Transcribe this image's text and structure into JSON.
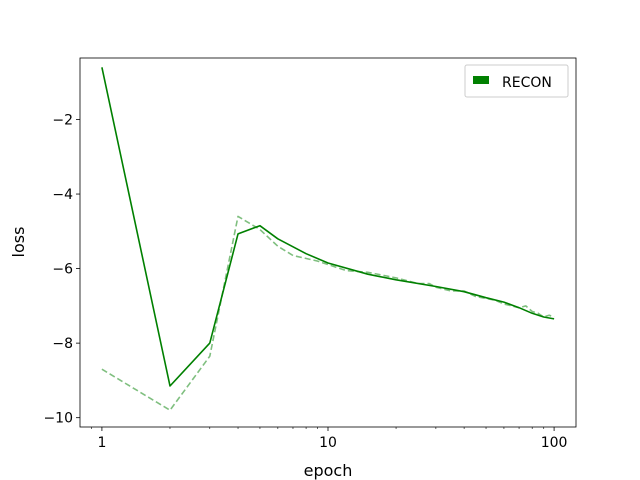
{
  "chart_data": {
    "type": "line",
    "title": "",
    "xlabel": "epoch",
    "ylabel": "loss",
    "xscale": "log",
    "xlim": [
      0.8,
      125
    ],
    "ylim": [
      -10.25,
      -0.35
    ],
    "x_ticks": [
      1,
      10,
      100
    ],
    "x_tick_labels": [
      "1",
      "10",
      "100"
    ],
    "y_ticks": [
      -10,
      -8,
      -6,
      -4,
      -2
    ],
    "y_tick_labels": [
      "−10",
      "−8",
      "−6",
      "−4",
      "−2"
    ],
    "grid": false,
    "legend_position": "top-right",
    "legend": [
      {
        "label": "RECON",
        "color": "#008000"
      }
    ],
    "series": [
      {
        "name": "RECON",
        "style": "solid",
        "color": "#008000",
        "x": [
          1,
          2,
          3,
          4,
          5,
          6,
          8,
          10,
          15,
          20,
          30,
          40,
          50,
          60,
          70,
          80,
          90,
          100
        ],
        "y": [
          -0.6,
          -9.15,
          -8.0,
          -5.07,
          -4.85,
          -5.2,
          -5.6,
          -5.85,
          -6.15,
          -6.3,
          -6.48,
          -6.62,
          -6.78,
          -6.9,
          -7.05,
          -7.2,
          -7.3,
          -7.35
        ]
      },
      {
        "style": "dashed",
        "color": "#008000",
        "opacity": 0.5,
        "x": [
          1,
          2,
          3,
          4,
          5,
          6,
          7,
          9,
          12,
          15,
          20,
          25,
          28,
          30,
          35,
          40,
          45,
          50,
          55,
          60,
          65,
          70,
          75,
          80,
          85,
          90,
          95,
          100
        ],
        "y": [
          -8.7,
          -9.8,
          -8.35,
          -4.6,
          -4.95,
          -5.4,
          -5.65,
          -5.8,
          -6.05,
          -6.1,
          -6.25,
          -6.4,
          -6.4,
          -6.5,
          -6.6,
          -6.6,
          -6.75,
          -6.8,
          -6.85,
          -6.95,
          -7.0,
          -7.05,
          -7.0,
          -7.15,
          -7.2,
          -7.3,
          -7.25,
          -7.3
        ]
      }
    ]
  }
}
